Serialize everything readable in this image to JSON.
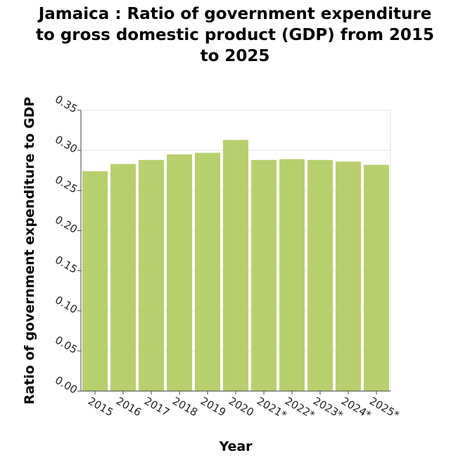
{
  "chart_data": {
    "type": "bar",
    "title_lines": [
      "Jamaica : Ratio of government expenditure",
      "to gross domestic product (GDP) from 2015",
      "to 2025"
    ],
    "xlabel": "Year",
    "ylabel": "Ratio of government expenditure to GDP",
    "categories": [
      "2015",
      "2016",
      "2017",
      "2018",
      "2019",
      "2020",
      "2021*",
      "2022*",
      "2023*",
      "2024*",
      "2025*"
    ],
    "values": [
      0.274,
      0.283,
      0.288,
      0.295,
      0.297,
      0.313,
      0.288,
      0.289,
      0.288,
      0.286,
      0.282
    ],
    "ylim": [
      0,
      0.35
    ],
    "yticks": [
      "0.00",
      "0.05",
      "0.10",
      "0.15",
      "0.20",
      "0.25",
      "0.30",
      "0.35"
    ],
    "grid": true,
    "bar_color": "#b9cf6e"
  }
}
